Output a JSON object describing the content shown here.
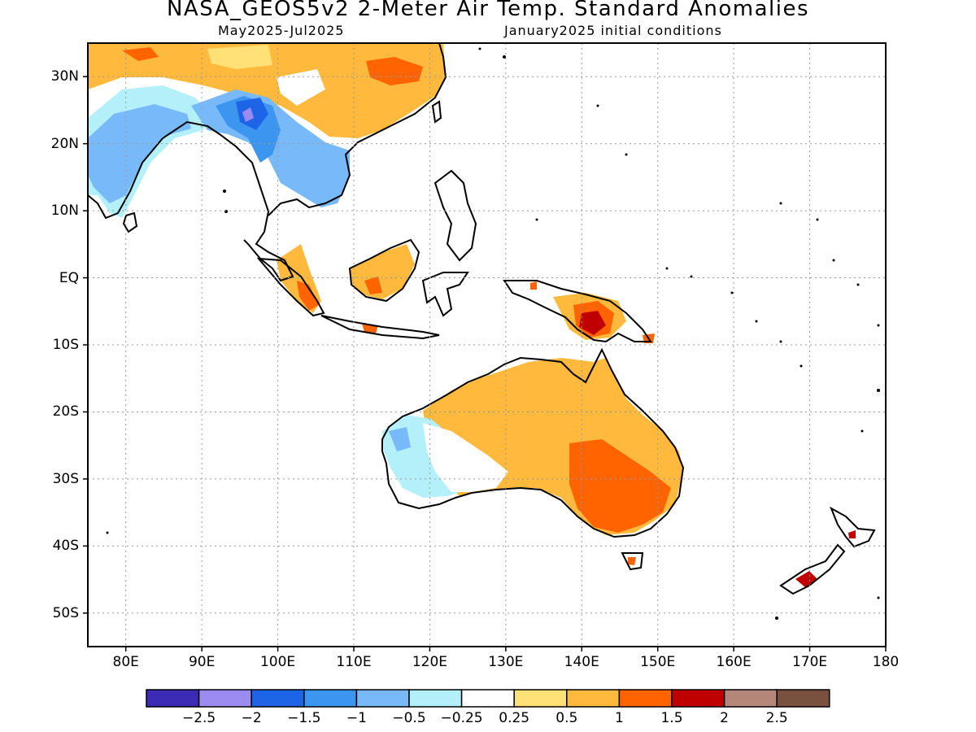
{
  "title": "NASA_GEOS5v2 2-Meter Air Temp. Standard Anomalies",
  "subtitle_left": "May2025-Jul2025",
  "subtitle_right": "January2025 initial conditions",
  "lat_labels": [
    "30N",
    "20N",
    "10N",
    "EQ",
    "10S",
    "20S",
    "30S",
    "40S",
    "50S"
  ],
  "lon_labels": [
    "80E",
    "90E",
    "100E",
    "110E",
    "120E",
    "130E",
    "140E",
    "150E",
    "160E",
    "170E",
    "180"
  ],
  "colorbar": {
    "labels": [
      "-2.5",
      "-2",
      "-1.5",
      "-1",
      "-0.5",
      "-0.25",
      "0.25",
      "0.5",
      "1",
      "1.5",
      "2",
      "2.5"
    ],
    "colors": [
      "#3b2bb5",
      "#9c8cf2",
      "#1e64e6",
      "#3c96f0",
      "#78b9fa",
      "#b4f0fa",
      "#ffffff",
      "#ffe178",
      "#ffb93c",
      "#ff6400",
      "#c00000",
      "#b4877a",
      "#7a5040"
    ]
  },
  "map_data": {
    "lon_range": [
      75,
      180
    ],
    "lat_range": [
      -55,
      35
    ],
    "anomaly_regions": [
      {
        "region": "Indian subcontinent",
        "level": "-0.5"
      },
      {
        "region": "Myanmar / Indochina",
        "level": "-1.5"
      },
      {
        "region": "Southern China",
        "level": "0.5"
      },
      {
        "region": "Borneo",
        "level": "0.5"
      },
      {
        "region": "Sumatra",
        "level": "1"
      },
      {
        "region": "New Guinea",
        "level": "2"
      },
      {
        "region": "Eastern Australia",
        "level": "1"
      },
      {
        "region": "Southeast Australia",
        "level": "1.5"
      },
      {
        "region": "Western Australia",
        "level": "-0.5"
      },
      {
        "region": "New Zealand",
        "level": "2"
      }
    ]
  }
}
